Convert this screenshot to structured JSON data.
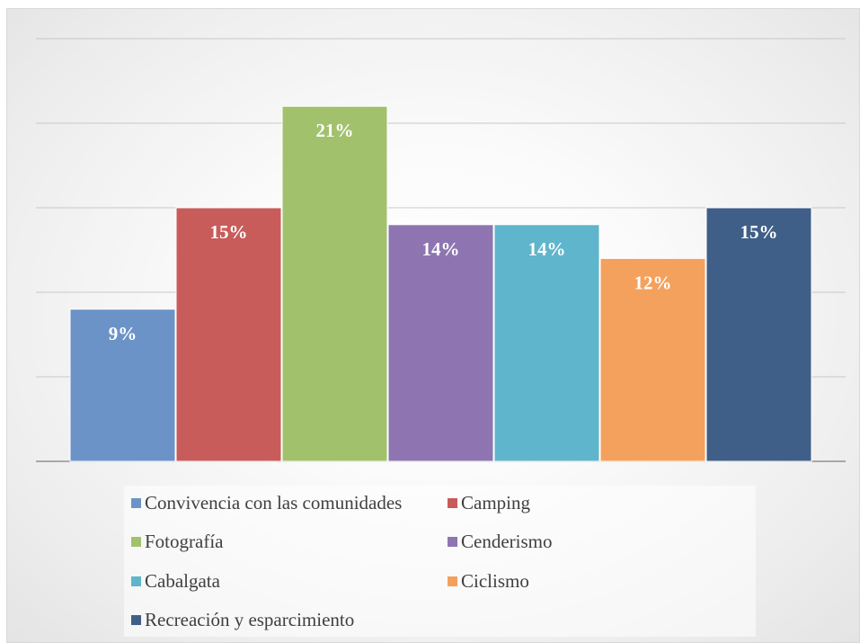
{
  "chart_data": {
    "type": "bar",
    "categories": [
      "Convivencia con las comunidades",
      "Camping",
      "Fotografía",
      "Cenderismo",
      "Cabalgata",
      "Ciclismo",
      "Recreación y esparcimiento"
    ],
    "values": [
      9,
      15,
      21,
      14,
      14,
      12,
      15
    ],
    "value_labels": [
      "9%",
      "15%",
      "21%",
      "14%",
      "14%",
      "12%",
      "15%"
    ],
    "colors": [
      "#6b93c8",
      "#c85c5a",
      "#a2c16c",
      "#8e75b2",
      "#5fb5cc",
      "#f4a15d",
      "#3f5f88"
    ],
    "ylim": [
      0,
      25
    ],
    "title": "",
    "xlabel": "",
    "ylabel": "",
    "grid": true,
    "legend_position": "bottom"
  }
}
